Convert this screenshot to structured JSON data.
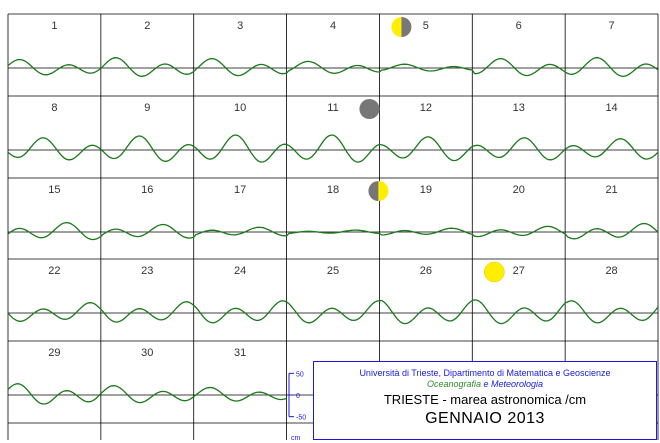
{
  "chart_data": {
    "type": "line",
    "days": [
      "1",
      "2",
      "3",
      "4",
      "5",
      "6",
      "7",
      "8",
      "9",
      "10",
      "11",
      "12",
      "13",
      "14",
      "15",
      "16",
      "17",
      "18",
      "19",
      "20",
      "21",
      "22",
      "23",
      "24",
      "25",
      "26",
      "27",
      "28",
      "29",
      "30",
      "31"
    ],
    "series": [
      {
        "name": "",
        "amplitudes_cm": [
          18,
          22,
          20,
          14,
          8,
          20,
          22,
          26,
          30,
          32,
          32,
          28,
          26,
          24,
          20,
          16,
          10,
          4,
          8,
          12,
          18,
          22,
          24,
          26,
          26,
          28,
          28,
          26,
          24,
          20,
          16
        ]
      }
    ],
    "scale": {
      "ticks": [
        "50",
        "0",
        "-50"
      ],
      "unit": "cm",
      "ylim": [
        -60,
        60
      ]
    },
    "moon_phases": [
      {
        "day": "5",
        "phase": "last-quarter"
      },
      {
        "day": "11",
        "phase": "new-moon"
      },
      {
        "day": "18",
        "phase": "first-quarter"
      },
      {
        "day": "27",
        "phase": "full-moon"
      }
    ],
    "colors": {
      "curve": "#1a7a1a",
      "grid": "#000000",
      "scale": "#1a1adc",
      "moon_dark": "#777777",
      "moon_light": "#ffee00"
    }
  },
  "info": {
    "institution": "Università di Trieste,  Dipartimento di Matematica e Geoscienze",
    "dept_a": "Oceanografia",
    "dept_and": "e",
    "dept_b": "Meteorologia",
    "subtitle": "TRIESTE  -  marea astronomica  /cm",
    "month": "GENNAIO   2013"
  }
}
